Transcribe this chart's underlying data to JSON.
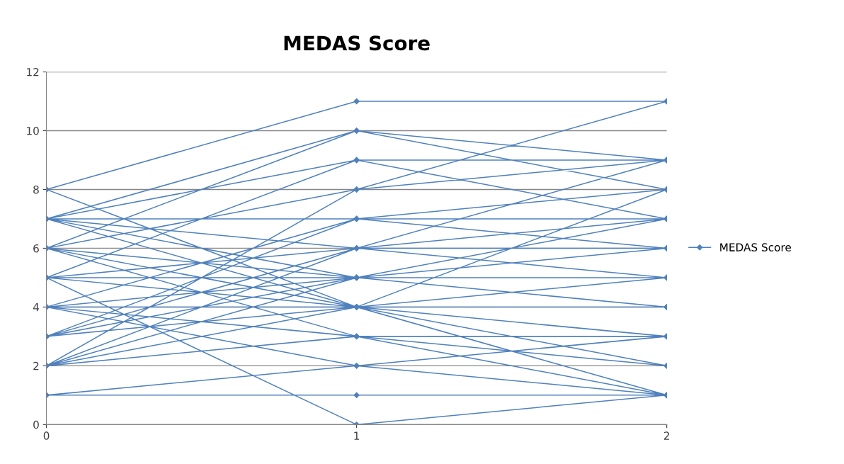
{
  "chart_data": {
    "type": "line",
    "title": "MEDAS Score",
    "xlim": [
      0,
      2
    ],
    "xticks": [
      0,
      1,
      2
    ],
    "ylim": [
      0,
      12
    ],
    "yticks": [
      0,
      2,
      4,
      6,
      8,
      10,
      12
    ],
    "grid": "y",
    "legend": "right",
    "marker": "diamond",
    "line_style": "solid",
    "series": [
      {
        "name": "MEDAS Score",
        "color": "#4f81bd",
        "x": [
          0,
          1,
          2,
          null,
          0,
          1,
          2,
          null,
          0,
          1,
          2,
          null,
          0,
          1,
          2,
          null,
          0,
          1,
          2,
          null,
          0,
          1,
          2,
          null,
          0,
          1,
          2,
          null,
          0,
          1,
          2,
          null,
          0,
          1,
          2,
          null,
          0,
          1,
          2,
          null,
          0,
          1,
          2,
          null,
          0,
          1,
          2,
          null,
          0,
          1,
          2,
          null,
          0,
          1,
          2,
          null,
          0,
          1,
          2,
          null,
          0,
          1,
          2,
          null,
          0,
          1,
          2,
          null,
          0,
          1,
          2,
          null,
          0,
          1,
          2,
          null,
          0,
          1,
          2,
          null,
          0,
          1,
          2,
          null,
          0,
          1,
          2,
          null,
          0,
          1,
          2,
          null,
          0,
          1,
          2,
          null,
          0,
          1,
          2,
          null,
          0,
          1,
          2,
          null,
          0,
          1,
          2,
          null,
          0,
          1,
          2,
          null,
          0,
          1,
          2,
          null,
          0,
          1,
          2,
          null,
          0,
          1,
          2,
          null,
          0,
          1,
          2,
          null,
          0,
          1,
          2,
          null,
          0,
          1,
          2
        ],
        "values": [
          8,
          11,
          11,
          null,
          1,
          1,
          1,
          null,
          5,
          0,
          1,
          null,
          7,
          10,
          9,
          null,
          6,
          10,
          8,
          null,
          8,
          4,
          3,
          null,
          7,
          9,
          9,
          null,
          5,
          9,
          7,
          null,
          6,
          8,
          11,
          null,
          2,
          8,
          9,
          null,
          7,
          7,
          7,
          null,
          4,
          7,
          8,
          null,
          3,
          6,
          9,
          null,
          2,
          6,
          6,
          null,
          7,
          6,
          5,
          null,
          6,
          5,
          4,
          null,
          5,
          5,
          5,
          null,
          4,
          5,
          6,
          null,
          3,
          5,
          7,
          null,
          2,
          4,
          4,
          null,
          7,
          4,
          2,
          null,
          6,
          4,
          3,
          null,
          5,
          4,
          1,
          null,
          4,
          4,
          5,
          null,
          3,
          4,
          8,
          null,
          2,
          3,
          3,
          null,
          6,
          3,
          2,
          null,
          1,
          2,
          1,
          null,
          4,
          2,
          3,
          null,
          3,
          7,
          6,
          null,
          2,
          5,
          4,
          null,
          5,
          6,
          7,
          null,
          4,
          3,
          1,
          null,
          7,
          5,
          4
        ]
      }
    ]
  }
}
